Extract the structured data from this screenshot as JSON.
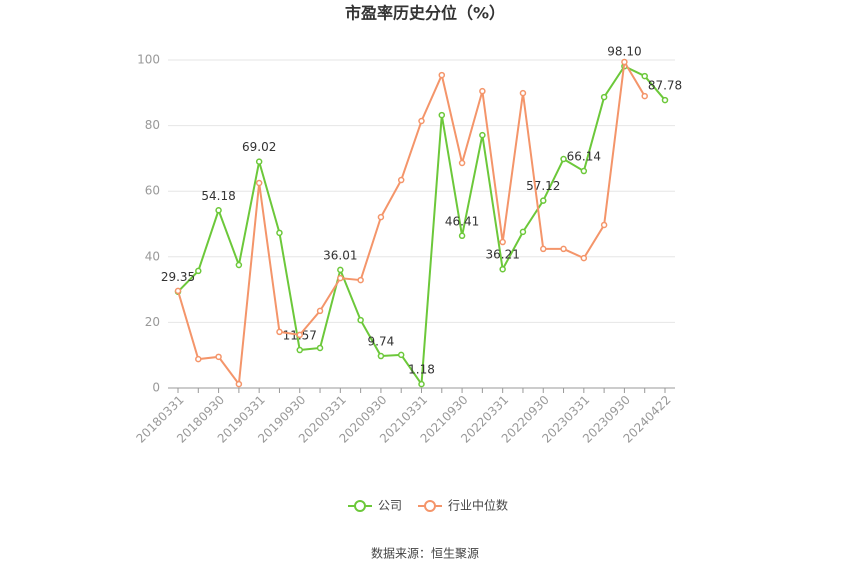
{
  "chart_data": {
    "type": "line",
    "title": "市盈率历史分位（%）",
    "categories": [
      "20180331",
      null,
      "20180930",
      null,
      "20190331",
      null,
      "20190930",
      null,
      "20200331",
      null,
      "20200930",
      null,
      "20210331",
      null,
      "20210930",
      null,
      "20220331",
      null,
      "20220930",
      null,
      "20230331",
      null,
      "20230930",
      null,
      "20240422"
    ],
    "series": [
      {
        "name": "公司",
        "color": "#6cc83a",
        "values": [
          29.35,
          35.7,
          54.18,
          37.5,
          69.02,
          47.3,
          11.57,
          12.2,
          36.01,
          20.7,
          9.74,
          10.1,
          1.18,
          83.2,
          46.41,
          77.1,
          36.21,
          47.6,
          57.12,
          69.8,
          66.14,
          88.7,
          98.1,
          95.1,
          87.78
        ],
        "value_labels": [
          "29.35",
          null,
          "54.18",
          null,
          "69.02",
          null,
          "11.57",
          null,
          "36.01",
          null,
          "9.74",
          null,
          "1.18",
          null,
          "46.41",
          null,
          "36.21",
          null,
          "57.12",
          null,
          "66.14",
          null,
          "98.10",
          null,
          "87.78"
        ]
      },
      {
        "name": "行业中位数",
        "color": "#f4956a",
        "values": [
          29.6,
          8.8,
          9.5,
          1.2,
          62.5,
          17.1,
          16.2,
          23.5,
          33.5,
          32.9,
          52.1,
          63.4,
          81.4,
          95.4,
          68.6,
          90.5,
          44.5,
          89.9,
          42.4,
          42.4,
          39.6,
          49.7,
          99.4,
          89.0,
          null
        ]
      }
    ],
    "ylim": [
      0,
      100
    ],
    "yticks": [
      0,
      20,
      40,
      60,
      80,
      100
    ],
    "grid": true,
    "source": "数据来源：恒生聚源"
  }
}
